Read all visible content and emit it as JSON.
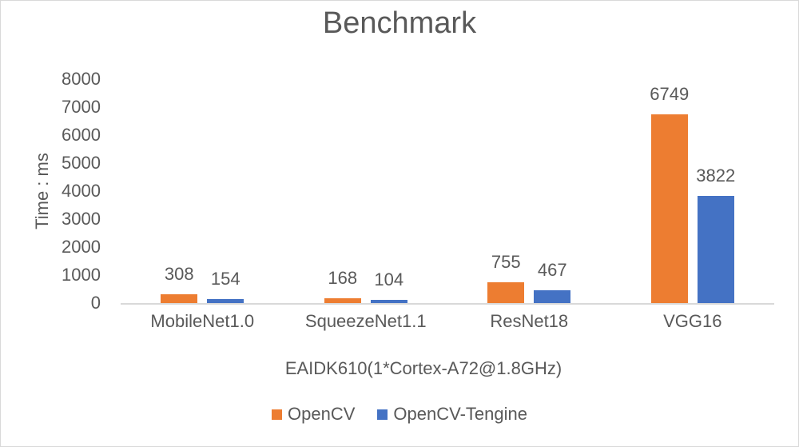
{
  "figure": {
    "type": "excel-style-clustered-bar-chart"
  },
  "chart_data": {
    "type": "bar",
    "title": "Benchmark",
    "categories": [
      "MobileNet1.0",
      "SqueezeNet1.1",
      "ResNet18",
      "VGG16"
    ],
    "series": [
      {
        "name": "OpenCV",
        "color": "#ED7D31",
        "values": [
          308,
          168,
          755,
          6749
        ]
      },
      {
        "name": "OpenCV-Tengine",
        "color": "#4472C4",
        "values": [
          154,
          104,
          467,
          3822
        ]
      }
    ],
    "xlabel": "EAIDK610(1*Cortex-A72@1.8GHz)",
    "ylabel": "Time : ms",
    "ylim": [
      0,
      8000
    ],
    "yticks": [
      0,
      1000,
      2000,
      3000,
      4000,
      5000,
      6000,
      7000,
      8000
    ],
    "grid": false,
    "data_labels": true,
    "legend_position": "bottom"
  },
  "colors": {
    "text": "#595959",
    "axis_line": "#d9d9d9",
    "border": "#d9d9d9",
    "background": "#ffffff",
    "series_opencv": "#ED7D31",
    "series_opencv_tengine": "#4472C4"
  }
}
